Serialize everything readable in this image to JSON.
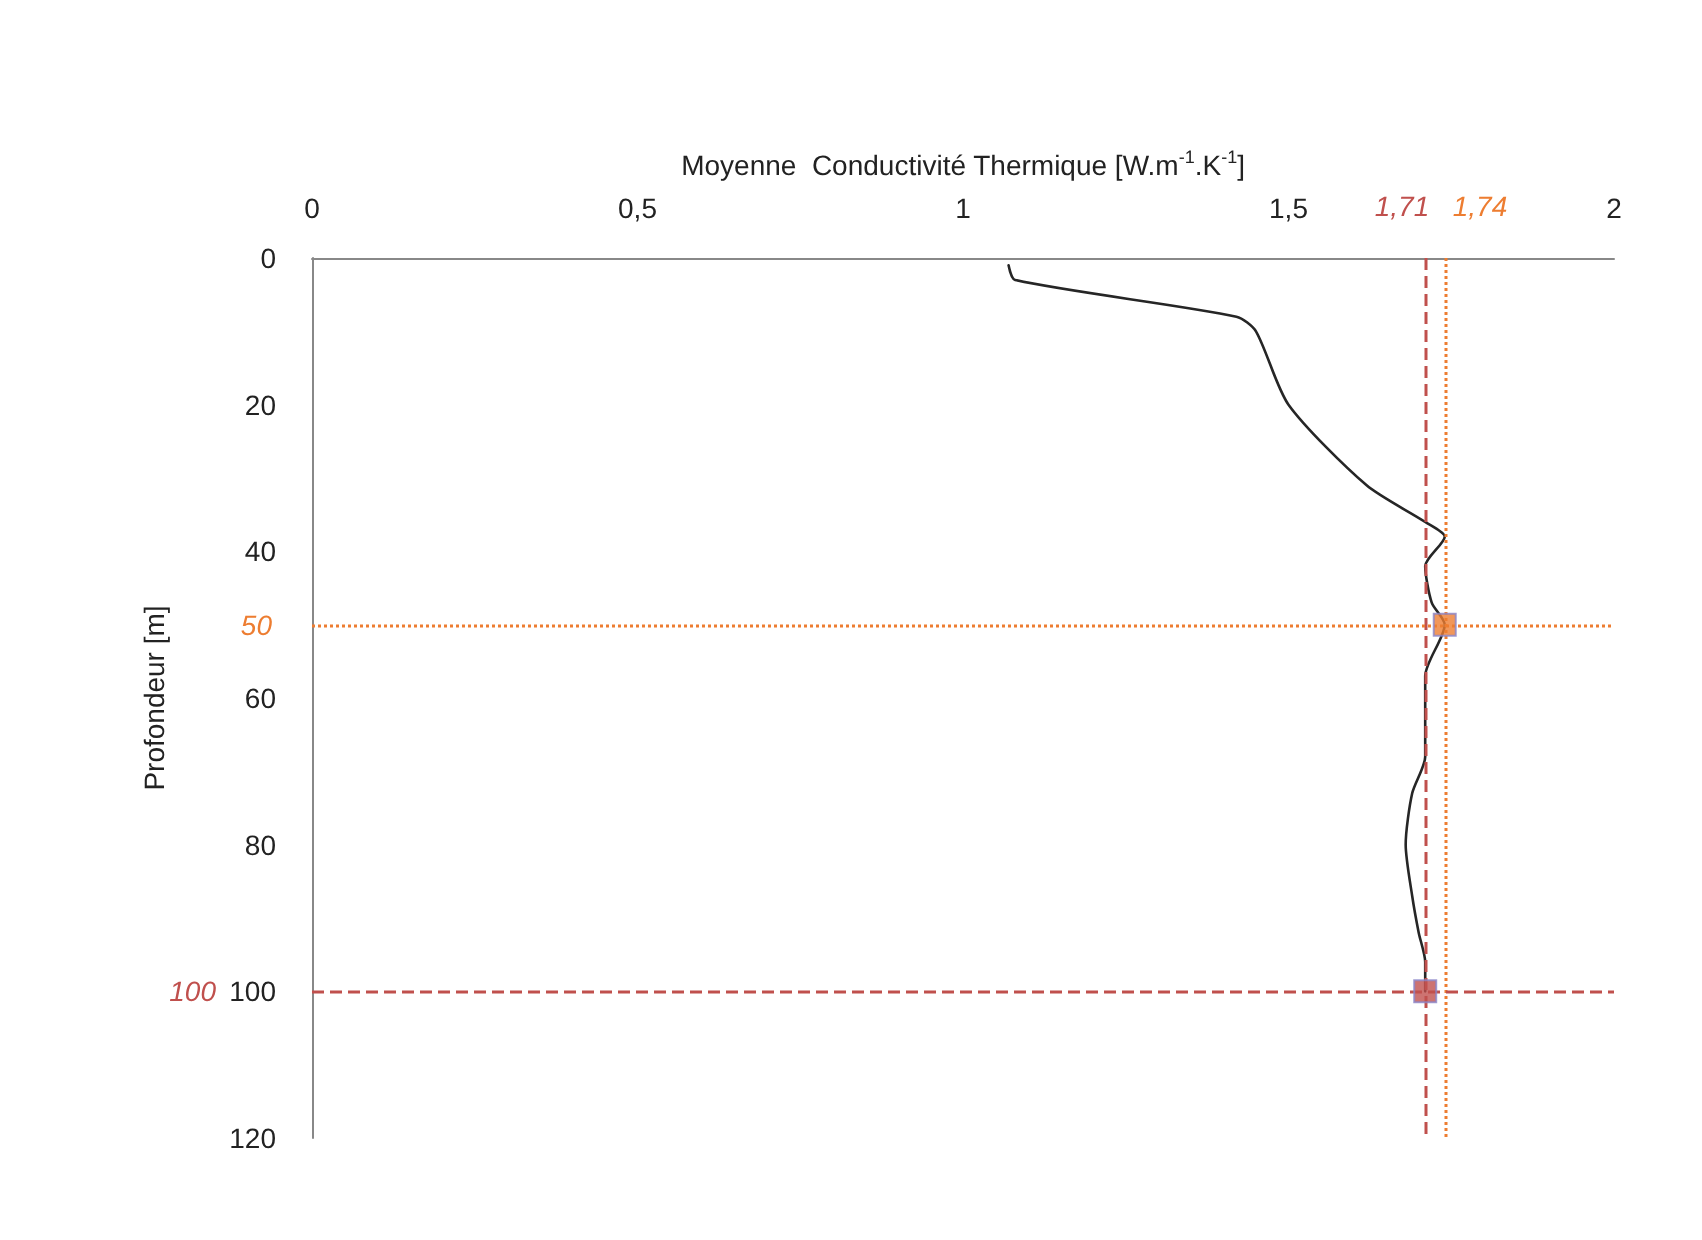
{
  "chart_data": {
    "type": "line",
    "xlabel": "Moyenne  Conductivité Thermique [W.m$^{-1}$.K$^{-1}$]",
    "ylabel": "Profondeur [m]",
    "xlim": [
      0,
      2
    ],
    "xticks": [
      0,
      {
        "value": 0.5,
        "label": "0,5"
      },
      1,
      {
        "value": 1.5,
        "label": "1,5"
      },
      2
    ],
    "ylim": [
      120,
      0
    ],
    "yticks": [
      0,
      20,
      40,
      60,
      80,
      100,
      120
    ],
    "grid": false,
    "marker": "none",
    "line_style": "solid",
    "series": [
      {
        "color": "#262626",
        "x": [
          1.07,
          1.08,
          1.42,
          1.45,
          1.5,
          1.62,
          1.71,
          1.74,
          1.71,
          1.72,
          1.74,
          1.71,
          1.71,
          1.69,
          1.68,
          1.69,
          1.7,
          1.71,
          1.71
        ],
        "values": [
          1,
          3,
          8,
          10,
          20,
          31,
          36,
          38,
          42,
          47,
          50,
          57,
          68,
          73,
          80,
          87,
          92,
          96,
          100
        ]
      },
      {
        "type": "scatter",
        "marker": "square",
        "color": "#ed7d31",
        "x": [
          1.74
        ],
        "values": [
          50
        ]
      },
      {
        "type": "scatter",
        "marker": "square",
        "color": "#c0504d",
        "x": [
          1.71
        ],
        "values": [
          100
        ]
      }
    ],
    "ref_lines": [
      {
        "axis": "x",
        "value": 1.71,
        "label": "1,71",
        "color": "#c0504d",
        "line_style": "dashed"
      },
      {
        "axis": "x",
        "value": 1.74,
        "label": "1,74",
        "color": "#ed7d31",
        "line_style": "dotted"
      },
      {
        "axis": "y",
        "value": 50,
        "label": "50",
        "color": "#ed7d31",
        "line_style": "dotted"
      },
      {
        "axis": "y",
        "value": 100,
        "label": "100",
        "color": "#c0504d",
        "line_style": "dashed"
      }
    ]
  }
}
